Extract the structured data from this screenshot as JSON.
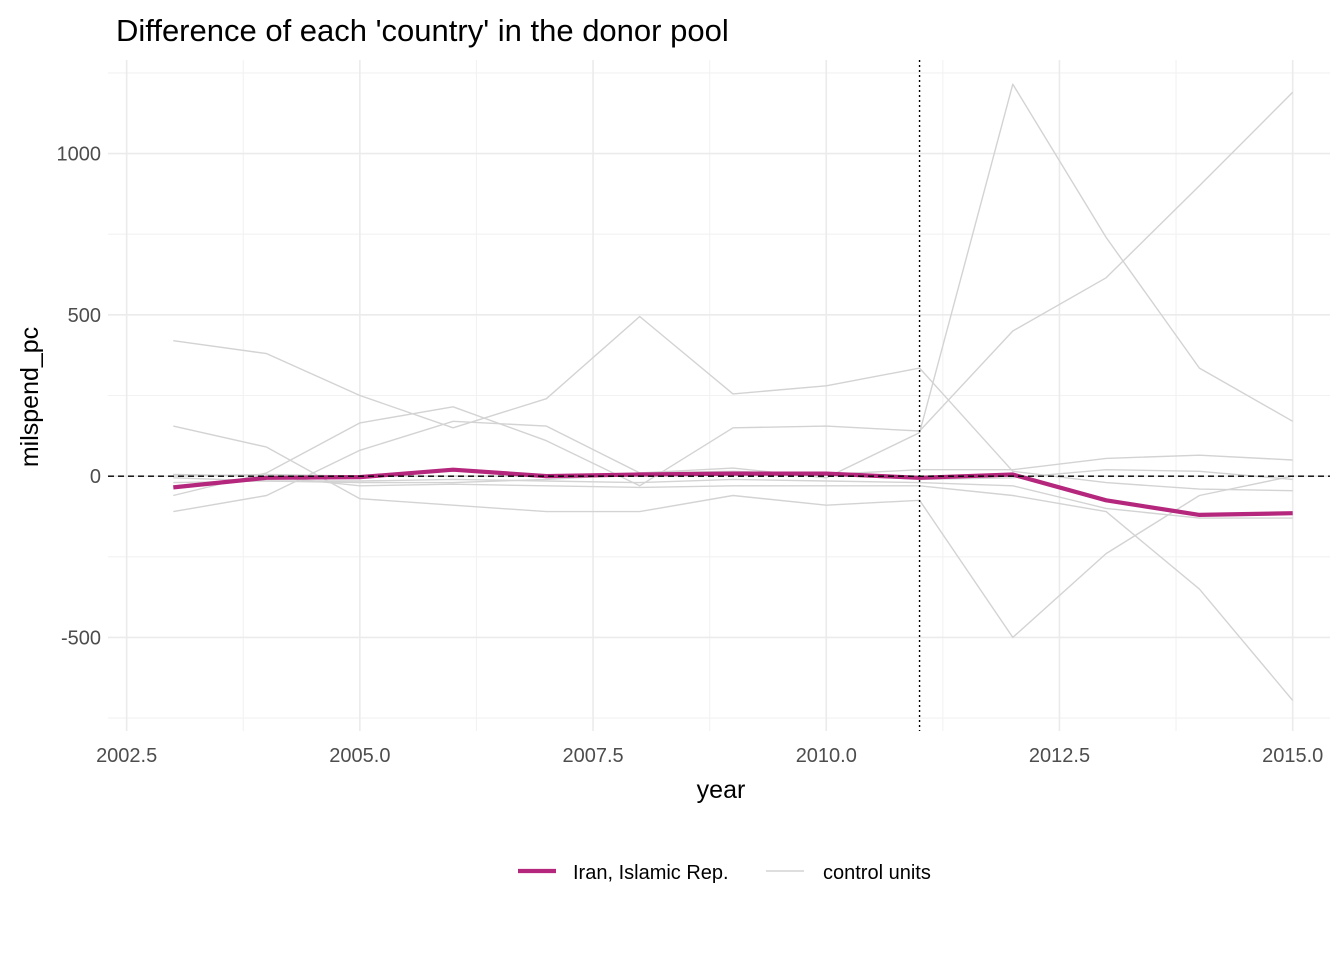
{
  "chart_data": {
    "type": "line",
    "title": "Difference of each 'country' in the donor pool",
    "xlabel": "year",
    "ylabel": "milspend_pc",
    "xlim": [
      2002.3,
      2015.4
    ],
    "ylim": [
      -790,
      1290
    ],
    "x_ticks": [
      2002.5,
      2005.0,
      2007.5,
      2010.0,
      2012.5,
      2015.0
    ],
    "x_tick_labels": [
      "2002.5",
      "2005.0",
      "2007.5",
      "2010.0",
      "2012.5",
      "2015.0"
    ],
    "y_ticks": [
      -500,
      0,
      500,
      1000
    ],
    "y_tick_labels": [
      "-500",
      "0",
      "500",
      "1000"
    ],
    "x_minor": [
      2003.75,
      2006.25,
      2008.75,
      2011.25,
      2013.75
    ],
    "y_minor": [
      -750,
      -250,
      250,
      750,
      1250
    ],
    "grid": true,
    "vline_x": 2011,
    "hline_y": 0,
    "legend_position": "bottom",
    "legend": [
      {
        "label": "Iran, Islamic Rep.",
        "color": "#B5267D",
        "style": "thick"
      },
      {
        "label": "control units",
        "color": "#D3D3D3",
        "style": "thin"
      }
    ],
    "x": [
      2003,
      2004,
      2005,
      2006,
      2007,
      2008,
      2009,
      2010,
      2011,
      2012,
      2013,
      2014,
      2015
    ],
    "series": [
      {
        "name": "Iran, Islamic Rep.",
        "color": "#B5267D",
        "values": [
          -35,
          -5,
          -3,
          20,
          0,
          5,
          8,
          8,
          -5,
          5,
          -75,
          -120,
          -115
        ]
      },
      {
        "color": "#D3D3D3",
        "values": [
          420,
          380,
          250,
          150,
          240,
          495,
          255,
          280,
          335,
          15,
          -20,
          -40,
          -45
        ]
      },
      {
        "color": "#D3D3D3",
        "values": [
          155,
          90,
          -70,
          -90,
          -110,
          -110,
          -60,
          -90,
          -75,
          -500,
          -240,
          -60,
          0
        ]
      },
      {
        "color": "#D3D3D3",
        "values": [
          -110,
          -60,
          80,
          170,
          155,
          10,
          25,
          -5,
          135,
          1215,
          740,
          335,
          170
        ]
      },
      {
        "color": "#D3D3D3",
        "values": [
          -60,
          10,
          165,
          215,
          110,
          -30,
          150,
          155,
          140,
          450,
          615,
          900,
          1190
        ]
      },
      {
        "color": "#D3D3D3",
        "values": [
          -5,
          -15,
          -20,
          -20,
          -10,
          5,
          10,
          5,
          20,
          20,
          55,
          65,
          50
        ]
      },
      {
        "color": "#D3D3D3",
        "values": [
          5,
          0,
          -30,
          -25,
          -30,
          -35,
          -30,
          -30,
          -30,
          -60,
          -110,
          -350,
          -695
        ]
      },
      {
        "color": "#D3D3D3",
        "values": [
          -20,
          -15,
          -15,
          -10,
          -15,
          -20,
          -10,
          -15,
          -20,
          -30,
          -100,
          -130,
          -130
        ]
      },
      {
        "color": "#D3D3D3",
        "values": [
          0,
          5,
          0,
          0,
          0,
          10,
          15,
          5,
          -10,
          -5,
          20,
          15,
          -10
        ]
      }
    ]
  }
}
